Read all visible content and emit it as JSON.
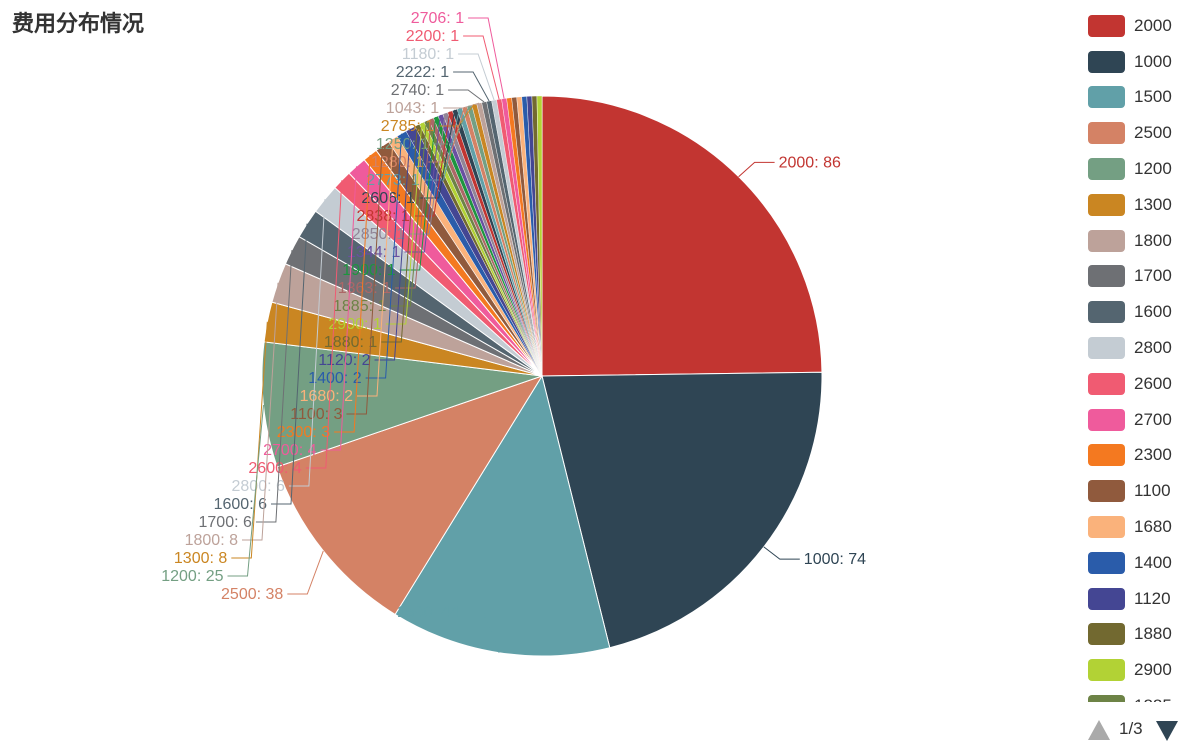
{
  "title": "费用分布情况",
  "pager": {
    "text": "1/3"
  },
  "chart_data": {
    "type": "pie",
    "title": "费用分布情况",
    "legend_position": "right",
    "legend_page": "1/3",
    "start_angle_deg": 90,
    "clockwise": true,
    "slices": [
      {
        "name": "2000",
        "value": 86,
        "color": "#c23531"
      },
      {
        "name": "1000",
        "value": 74,
        "color": "#2f4554"
      },
      {
        "name": "1500",
        "value": 44,
        "color": "#61a0a8"
      },
      {
        "name": "2500",
        "value": 38,
        "color": "#d48265"
      },
      {
        "name": "1200",
        "value": 25,
        "color": "#749f83"
      },
      {
        "name": "1300",
        "value": 8,
        "color": "#ca8622"
      },
      {
        "name": "1800",
        "value": 8,
        "color": "#bda29a"
      },
      {
        "name": "1700",
        "value": 6,
        "color": "#6e7074"
      },
      {
        "name": "1600",
        "value": 6,
        "color": "#546570"
      },
      {
        "name": "2800",
        "value": 6,
        "color": "#c4ccd3"
      },
      {
        "name": "2600",
        "value": 4,
        "color": "#f05b72"
      },
      {
        "name": "2700",
        "value": 4,
        "color": "#ef5b9c"
      },
      {
        "name": "2300",
        "value": 3,
        "color": "#f47920"
      },
      {
        "name": "1100",
        "value": 3,
        "color": "#905a3d"
      },
      {
        "name": "1680",
        "value": 2,
        "color": "#fab27b"
      },
      {
        "name": "1400",
        "value": 2,
        "color": "#2a5caa"
      },
      {
        "name": "1120",
        "value": 2,
        "color": "#444693"
      },
      {
        "name": "1880",
        "value": 1,
        "color": "#726930"
      },
      {
        "name": "2900",
        "value": 1,
        "color": "#b2d235"
      },
      {
        "name": "1885",
        "value": 1,
        "color": "#6d8346"
      },
      {
        "name": "1363",
        "value": 1,
        "color": "#ac6767"
      },
      {
        "name": "1900",
        "value": 1,
        "color": "#1d953f"
      },
      {
        "name": "1344",
        "value": 1,
        "color": "#6950a1"
      },
      {
        "name": "2850",
        "value": 1,
        "color": "#918597"
      },
      {
        "name": "2838",
        "value": 1,
        "color": "#c23531"
      },
      {
        "name": "2606",
        "value": 1,
        "color": "#2f4554"
      },
      {
        "name": "2773",
        "value": 1,
        "color": "#61a0a8"
      },
      {
        "name": "1280",
        "value": 1,
        "color": "#d48265"
      },
      {
        "name": "1250",
        "value": 1,
        "color": "#749f83"
      },
      {
        "name": "2785",
        "value": 1,
        "color": "#ca8622"
      },
      {
        "name": "1043",
        "value": 1,
        "color": "#bda29a"
      },
      {
        "name": "2740",
        "value": 1,
        "color": "#6e7074"
      },
      {
        "name": "2222",
        "value": 1,
        "color": "#546570"
      },
      {
        "name": "1180",
        "value": 1,
        "color": "#c4ccd3"
      },
      {
        "name": "2200",
        "value": 1,
        "color": "#f05b72"
      },
      {
        "name": "2706",
        "value": 1,
        "color": "#ef5b9c"
      },
      {
        "name": "",
        "value": 1,
        "color": "#f47920"
      },
      {
        "name": "",
        "value": 1,
        "color": "#905a3d"
      },
      {
        "name": "",
        "value": 1,
        "color": "#fab27b"
      },
      {
        "name": "",
        "value": 1,
        "color": "#2a5caa"
      },
      {
        "name": "",
        "value": 1,
        "color": "#444693"
      },
      {
        "name": "",
        "value": 1,
        "color": "#726930"
      },
      {
        "name": "",
        "value": 1,
        "color": "#b2d235"
      }
    ]
  }
}
